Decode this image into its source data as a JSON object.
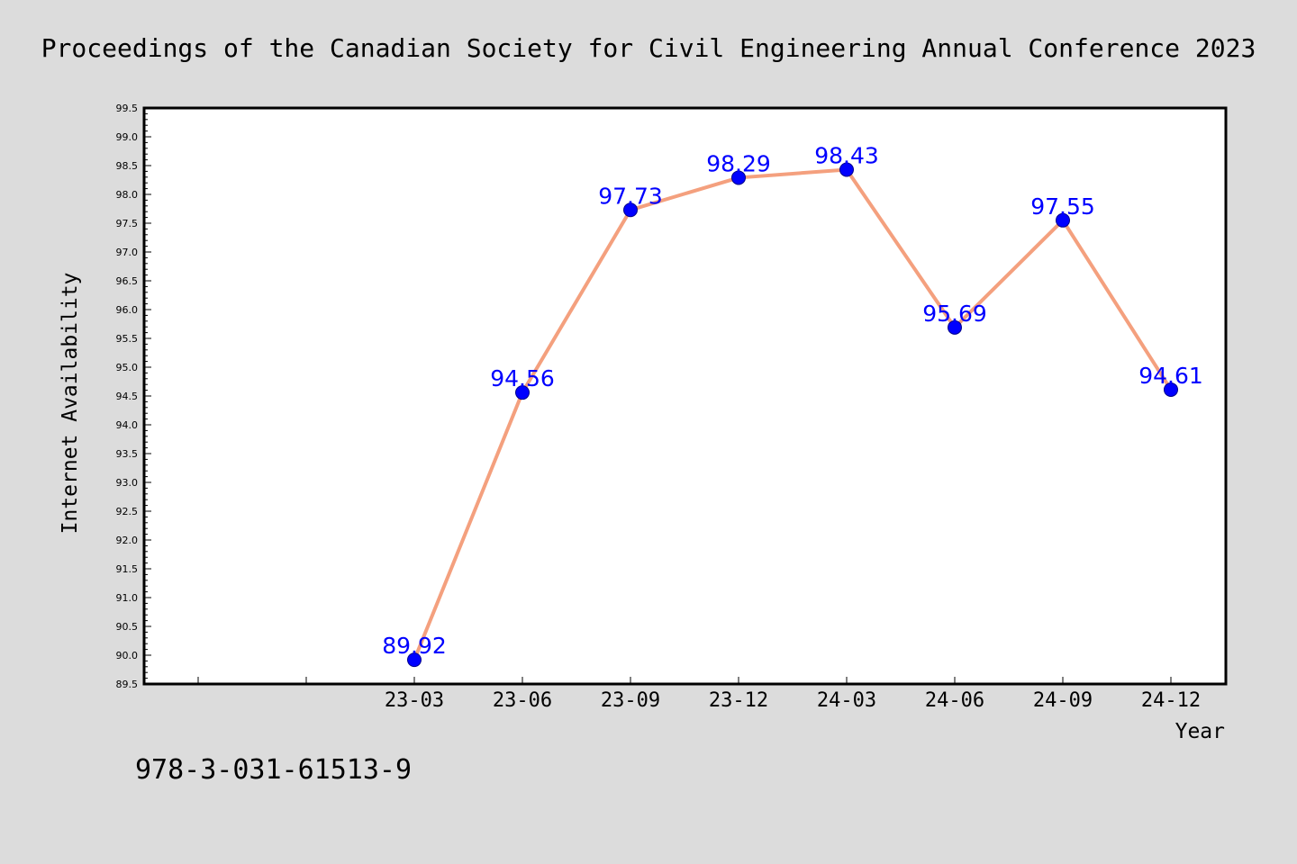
{
  "title": "Proceedings of the Canadian Society for Civil Engineering Annual Conference 2023",
  "footnote": "978-3-031-61513-9",
  "colors": {
    "background": "#dcdcdc",
    "plot_background": "#ffffff",
    "line": "#f4a07e",
    "marker": "#0000ff",
    "data_label": "#0000ff"
  },
  "chart_data": {
    "type": "line",
    "xlabel": "Year",
    "ylabel": "Internet Availability",
    "categories": [
      "23-03",
      "23-06",
      "23-09",
      "23-12",
      "24-03",
      "24-06",
      "24-09",
      "24-12"
    ],
    "values": [
      89.92,
      94.56,
      97.73,
      98.29,
      98.43,
      95.69,
      97.55,
      94.61
    ],
    "value_labels": [
      "89.92",
      "94.56",
      "97.73",
      "98.29",
      "98.43",
      "95.69",
      "97.55",
      "94.61"
    ],
    "ylim": [
      89.5,
      99.5
    ],
    "yticks": [
      "89.5",
      "90.0",
      "90.5",
      "91.0",
      "91.5",
      "92.0",
      "92.5",
      "93.0",
      "93.5",
      "94.0",
      "94.5",
      "95.0",
      "95.5",
      "96.0",
      "96.5",
      "97.0",
      "97.5",
      "98.0",
      "98.5",
      "99.0",
      "99.5"
    ],
    "grid": false,
    "legend": false
  }
}
